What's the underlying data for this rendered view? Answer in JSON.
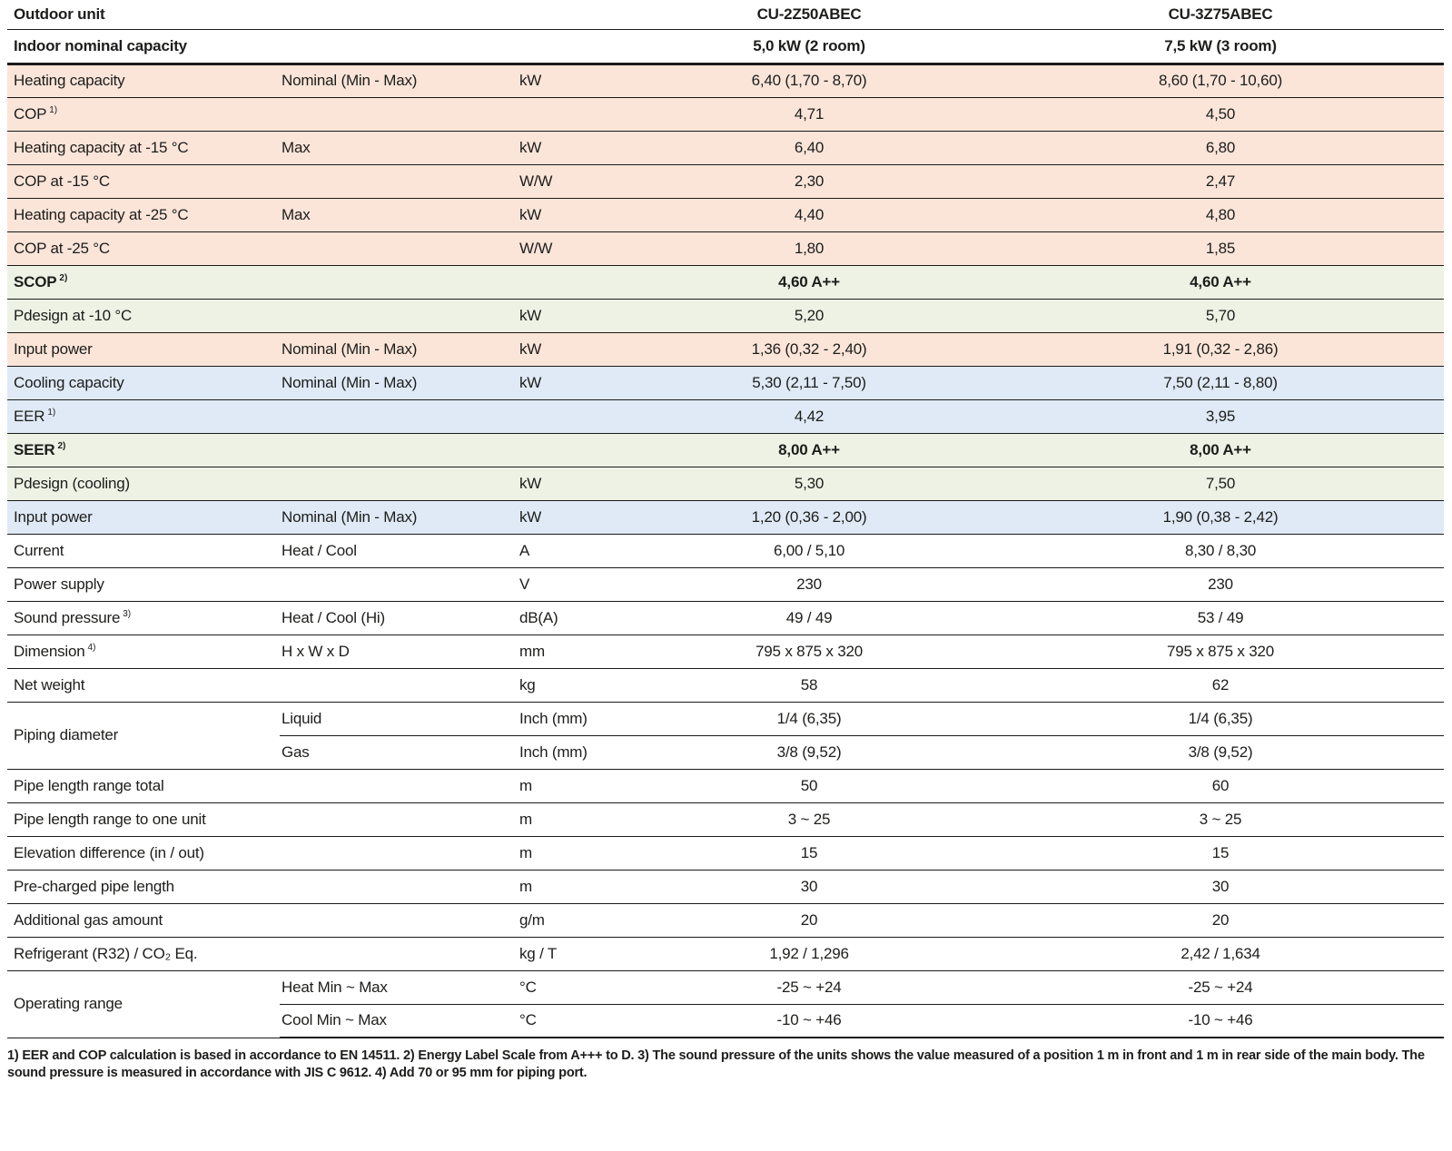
{
  "header": {
    "outdoor_unit_label": "Outdoor unit",
    "model_1": "CU-2Z50ABEC",
    "model_2": "CU-3Z75ABEC",
    "capacity_row_label": "Indoor nominal capacity",
    "capacity_1": "5,0 kW (2 room)",
    "capacity_2": "7,5 kW (3 room)"
  },
  "rows": [
    {
      "label": "Heating capacity",
      "sub": "Nominal (Min - Max)",
      "unit": "kW",
      "v1": "6,40 (1,70 - 8,70)",
      "v2": "8,60 (1,70 - 10,60)",
      "bg": "peach"
    },
    {
      "label": "COP",
      "sup": "1)",
      "sub": "",
      "unit": "",
      "v1": "4,71",
      "v2": "4,50",
      "bg": "peach"
    },
    {
      "label": "Heating capacity at -15 °C",
      "sub": "Max",
      "unit": "kW",
      "v1": "6,40",
      "v2": "6,80",
      "bg": "peach"
    },
    {
      "label": "COP at -15 °C",
      "sub": "",
      "unit": "W/W",
      "v1": "2,30",
      "v2": "2,47",
      "bg": "peach"
    },
    {
      "label": "Heating capacity at -25 °C",
      "sub": "Max",
      "unit": "kW",
      "v1": "4,40",
      "v2": "4,80",
      "bg": "peach"
    },
    {
      "label": "COP at -25 °C",
      "sub": "",
      "unit": "W/W",
      "v1": "1,80",
      "v2": "1,85",
      "bg": "peach"
    },
    {
      "label": "SCOP",
      "sup": "2)",
      "bold": true,
      "sub": "",
      "unit": "",
      "v1": "4,60 A++",
      "v2": "4,60 A++",
      "bg": "green"
    },
    {
      "label": "Pdesign at -10 °C",
      "sub": "",
      "unit": "kW",
      "v1": "5,20",
      "v2": "5,70",
      "bg": "green"
    },
    {
      "label": "Input power",
      "sub": "Nominal (Min - Max)",
      "unit": "kW",
      "v1": "1,36 (0,32 - 2,40)",
      "v2": "1,91 (0,32 - 2,86)",
      "bg": "peach"
    },
    {
      "label": "Cooling capacity",
      "sub": "Nominal (Min - Max)",
      "unit": "kW",
      "v1": "5,30 (2,11 - 7,50)",
      "v2": "7,50 (2,11 - 8,80)",
      "bg": "blue"
    },
    {
      "label": "EER",
      "sup": "1)",
      "sub": "",
      "unit": "",
      "v1": "4,42",
      "v2": "3,95",
      "bg": "blue"
    },
    {
      "label": "SEER",
      "sup": "2)",
      "bold": true,
      "sub": "",
      "unit": "",
      "v1": "8,00 A++",
      "v2": "8,00 A++",
      "bg": "green"
    },
    {
      "label": "Pdesign (cooling)",
      "sub": "",
      "unit": "kW",
      "v1": "5,30",
      "v2": "7,50",
      "bg": "green"
    },
    {
      "label": "Input power",
      "sub": "Nominal (Min - Max)",
      "unit": "kW",
      "v1": "1,20 (0,36 - 2,00)",
      "v2": "1,90 (0,38 - 2,42)",
      "bg": "blue"
    },
    {
      "label": "Current",
      "sub": "Heat / Cool",
      "unit": "A",
      "v1": "6,00 / 5,10",
      "v2": "8,30 / 8,30",
      "bg": "white"
    },
    {
      "label": "Power supply",
      "sub": "",
      "unit": "V",
      "v1": "230",
      "v2": "230",
      "bg": "white"
    },
    {
      "label": "Sound pressure",
      "sup": "3)",
      "sub": "Heat / Cool (Hi)",
      "unit": "dB(A)",
      "v1": "49 / 49",
      "v2": "53 / 49",
      "bg": "white"
    },
    {
      "label": "Dimension",
      "sup": "4)",
      "sub": "H x W x D",
      "unit": "mm",
      "v1": "795 x 875 x 320",
      "v2": "795 x 875 x 320",
      "bg": "white"
    },
    {
      "label": "Net weight",
      "sub": "",
      "unit": "kg",
      "v1": "58",
      "v2": "62",
      "bg": "white"
    },
    {
      "label": "Piping diameter",
      "span": 2,
      "sub": "Liquid",
      "unit": "Inch (mm)",
      "v1": "1/4 (6,35)",
      "v2": "1/4 (6,35)",
      "bg": "white"
    },
    {
      "label": null,
      "sub": "Gas",
      "unit": "Inch (mm)",
      "v1": "3/8 (9,52)",
      "v2": "3/8 (9,52)",
      "bg": "white"
    },
    {
      "label": "Pipe length range total",
      "sub": "",
      "unit": "m",
      "v1": "50",
      "v2": "60",
      "bg": "white"
    },
    {
      "label": "Pipe length range to one unit",
      "sub": "",
      "unit": "m",
      "v1": "3 ~ 25",
      "v2": "3 ~ 25",
      "bg": "white"
    },
    {
      "label": "Elevation difference (in / out)",
      "sub": "",
      "unit": "m",
      "v1": "15",
      "v2": "15",
      "bg": "white"
    },
    {
      "label": "Pre-charged pipe length",
      "sub": "",
      "unit": "m",
      "v1": "30",
      "v2": "30",
      "bg": "white"
    },
    {
      "label": "Additional gas amount",
      "sub": "",
      "unit": "g/m",
      "v1": "20",
      "v2": "20",
      "bg": "white"
    },
    {
      "label": "Refrigerant (R32) / CO₂ Eq.",
      "sub": "",
      "unit": "kg / T",
      "v1": "1,92 / 1,296",
      "v2": "2,42 / 1,634",
      "bg": "white"
    },
    {
      "label": "Operating range",
      "span": 2,
      "sub": "Heat Min ~ Max",
      "unit": "°C",
      "v1": "-25 ~ +24",
      "v2": "-25 ~ +24",
      "bg": "white"
    },
    {
      "label": null,
      "sub": "Cool Min ~ Max",
      "unit": "°C",
      "v1": "-10 ~ +46",
      "v2": "-10 ~ +46",
      "bg": "white"
    }
  ],
  "footnote": "1) EER and COP calculation is based in accordance to EN 14511. 2) Energy Label Scale from A+++ to D. 3) The sound pressure of the units shows the value measured of a position 1 m in front and 1 m in rear side of the main body. The sound pressure is measured in accordance with JIS C 9612. 4) Add 70 or 95 mm for piping port.",
  "colors": {
    "row_heating_bg": "#fbe5d9",
    "row_energy_label_bg": "#edf2e5",
    "row_cooling_bg": "#dfeaf6",
    "border": "#1a1a1a",
    "text": "#1d1d1b"
  }
}
